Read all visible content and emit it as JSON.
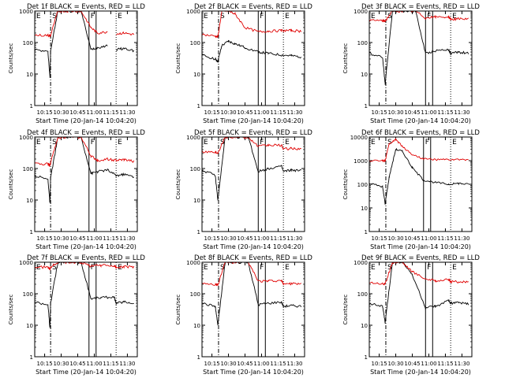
{
  "colors": {
    "events": "#000000",
    "lld": "#e00000",
    "axis": "#000000"
  },
  "panels": [
    {
      "title": "Det 1f BLACK = Events, RED = LLD",
      "ylabel": "Counts/sec",
      "xlabel": "Start Time (20-Jan-14 10:04:20)",
      "yscale": "log",
      "ylim": [
        1,
        1000
      ],
      "xlim": [
        10.1,
        11.65
      ],
      "yticks": [
        "1",
        "10",
        "100",
        "1000"
      ],
      "xticks": [
        "10:15",
        "10:30",
        "10:45",
        "11:00",
        "11:15",
        "11:30"
      ],
      "markers": [
        {
          "label": "E",
          "x": 10.1,
          "style": "dotted"
        },
        {
          "label": "S",
          "x": 10.34,
          "style": "dashdot"
        },
        {
          "label": "F",
          "x": 10.92,
          "style": "solid"
        },
        {
          "label": "E",
          "x": 11.33,
          "style": "dotted"
        }
      ],
      "chart_data": {
        "type": "line",
        "x": [
          10.1,
          10.3,
          10.33,
          10.34,
          10.45,
          10.6,
          10.8,
          10.95,
          11.05,
          11.2,
          11.3,
          11.33,
          11.45,
          11.6
        ],
        "series": [
          {
            "name": "Events",
            "values": [
              60,
              50,
              8,
              55,
              1000,
              1000,
              1000,
              60,
              70,
              80,
              null,
              60,
              65,
              55
            ]
          },
          {
            "name": "LLD",
            "values": [
              170,
              170,
              160,
              170,
              1000,
              1000,
              1000,
              300,
              200,
              220,
              null,
              190,
              200,
              180
            ]
          }
        ]
      }
    },
    {
      "title": "Det 2f BLACK = Events, RED = LLD",
      "ylabel": "Counts/sec",
      "xlabel": "Start Time (20-Jan-14 10:04:20)",
      "yscale": "log",
      "ylim": [
        1,
        1000
      ],
      "xlim": [
        10.1,
        11.65
      ],
      "yticks": [
        "1",
        "10",
        "100",
        "1000"
      ],
      "xticks": [
        "10:15",
        "10:30",
        "10:45",
        "11:00",
        "11:15",
        "11:30"
      ],
      "markers": [
        {
          "label": "E",
          "x": 10.1,
          "style": "dotted"
        },
        {
          "label": "S",
          "x": 10.35,
          "style": "dashdot"
        },
        {
          "label": "F",
          "x": 10.95,
          "style": "solid"
        },
        {
          "label": "E",
          "x": 11.33,
          "style": "dotted"
        }
      ],
      "chart_data": {
        "type": "line",
        "x": [
          10.1,
          10.3,
          10.34,
          10.4,
          10.5,
          10.6,
          10.75,
          10.95,
          11.1,
          11.3,
          11.45,
          11.6
        ],
        "series": [
          {
            "name": "Events",
            "values": [
              40,
              30,
              25,
              80,
              110,
              90,
              70,
              50,
              45,
              40,
              38,
              35
            ]
          },
          {
            "name": "LLD",
            "values": [
              180,
              160,
              150,
              1000,
              1000,
              800,
              300,
              220,
              230,
              240,
              240,
              230
            ]
          }
        ]
      }
    },
    {
      "title": "Det 3f BLACK = Events, RED = LLD",
      "ylabel": "Counts/sec",
      "xlabel": "Start Time (20-Jan-14 10:04:20)",
      "yscale": "log",
      "ylim": [
        1,
        1000
      ],
      "xlim": [
        10.1,
        11.65
      ],
      "yticks": [
        "1",
        "10",
        "100",
        "1000"
      ],
      "xticks": [
        "10:15",
        "10:30",
        "10:45",
        "11:00",
        "11:15",
        "11:30"
      ],
      "markers": [
        {
          "label": "E",
          "x": 10.1,
          "style": "dotted"
        },
        {
          "label": "S",
          "x": 10.35,
          "style": "dashdot"
        },
        {
          "label": "F",
          "x": 10.95,
          "style": "solid"
        },
        {
          "label": "E",
          "x": 11.33,
          "style": "dotted"
        }
      ],
      "chart_data": {
        "type": "line",
        "x": [
          10.1,
          10.3,
          10.34,
          10.45,
          10.6,
          10.8,
          10.95,
          11.1,
          11.3,
          11.33,
          11.45,
          11.6
        ],
        "series": [
          {
            "name": "Events",
            "values": [
              45,
              35,
              5,
              1000,
              1000,
              1000,
              45,
              55,
              60,
              45,
              50,
              45
            ]
          },
          {
            "name": "LLD",
            "values": [
              500,
              500,
              480,
              1000,
              1000,
              1000,
              600,
              650,
              650,
              550,
              560,
              550
            ]
          }
        ]
      }
    },
    {
      "title": "Det 4f BLACK = Events, RED = LLD",
      "ylabel": "Counts/sec",
      "xlabel": "Start Time (20-Jan-14 10:04:20)",
      "yscale": "log",
      "ylim": [
        1,
        1000
      ],
      "xlim": [
        10.1,
        11.65
      ],
      "yticks": [
        "1",
        "10",
        "100",
        "1000"
      ],
      "xticks": [
        "10:15",
        "10:30",
        "10:45",
        "11:00",
        "11:15",
        "11:30"
      ],
      "markers": [
        {
          "label": "E",
          "x": 10.1,
          "style": "dotted"
        },
        {
          "label": "S",
          "x": 10.34,
          "style": "dashdot"
        },
        {
          "label": "F",
          "x": 10.92,
          "style": "solid"
        },
        {
          "label": "E",
          "x": 11.33,
          "style": "dotted"
        }
      ],
      "chart_data": {
        "type": "line",
        "x": [
          10.1,
          10.3,
          10.33,
          10.34,
          10.45,
          10.6,
          10.8,
          10.95,
          11.05,
          11.2,
          11.33,
          11.45,
          11.6
        ],
        "series": [
          {
            "name": "Events",
            "values": [
              60,
              45,
              8,
              50,
              1000,
              1000,
              1000,
              70,
              80,
              90,
              60,
              65,
              55
            ]
          },
          {
            "name": "LLD",
            "values": [
              140,
              140,
              130,
              150,
              1000,
              1000,
              1000,
              250,
              180,
              200,
              180,
              190,
              170
            ]
          }
        ]
      }
    },
    {
      "title": "Det 5f BLACK = Events, RED = LLD",
      "ylabel": "Counts/sec",
      "xlabel": "Start Time (20-Jan-14 10:04:20)",
      "yscale": "log",
      "ylim": [
        1,
        1000
      ],
      "xlim": [
        10.1,
        11.65
      ],
      "yticks": [
        "1",
        "10",
        "100",
        "1000"
      ],
      "xticks": [
        "10:15",
        "10:30",
        "10:45",
        "11:00",
        "11:15",
        "11:30"
      ],
      "markers": [
        {
          "label": "E",
          "x": 10.1,
          "style": "dotted"
        },
        {
          "label": "S",
          "x": 10.35,
          "style": "dashdot"
        },
        {
          "label": "F",
          "x": 10.95,
          "style": "solid"
        },
        {
          "label": "E",
          "x": 11.33,
          "style": "dotted"
        }
      ],
      "chart_data": {
        "type": "line",
        "x": [
          10.1,
          10.3,
          10.34,
          10.45,
          10.6,
          10.8,
          10.95,
          11.1,
          11.3,
          11.33,
          11.45,
          11.6
        ],
        "series": [
          {
            "name": "Events",
            "values": [
              90,
              60,
              10,
              1000,
              1000,
              1000,
              80,
              100,
              120,
              80,
              90,
              85
            ]
          },
          {
            "name": "LLD",
            "values": [
              350,
              330,
              320,
              1000,
              1000,
              1000,
              500,
              550,
              550,
              420,
              430,
              420
            ]
          }
        ]
      }
    },
    {
      "title": "Det 6f BLACK = Events, RED = LLD",
      "ylabel": "Counts/sec",
      "xlabel": "Start Time (20-Jan-14 10:04:20)",
      "yscale": "log",
      "ylim": [
        1,
        10000
      ],
      "xlim": [
        10.1,
        11.65
      ],
      "yticks": [
        "1",
        "10",
        "100",
        "1000",
        "10000"
      ],
      "xticks": [
        "10:15",
        "10:30",
        "10:45",
        "11:00",
        "11:15",
        "11:30"
      ],
      "markers": [
        {
          "label": "E",
          "x": 10.1,
          "style": "dotted"
        },
        {
          "label": "S",
          "x": 10.35,
          "style": "dashdot"
        },
        {
          "label": "F",
          "x": 10.92,
          "style": "solid"
        },
        {
          "label": "E",
          "x": 11.33,
          "style": "dotted"
        }
      ],
      "chart_data": {
        "type": "line",
        "x": [
          10.1,
          10.3,
          10.34,
          10.4,
          10.5,
          10.6,
          10.75,
          10.92,
          11.1,
          11.3,
          11.45,
          11.6
        ],
        "series": [
          {
            "name": "Events",
            "values": [
              110,
              80,
              15,
              200,
              3000,
              2500,
              500,
              150,
              120,
              100,
              110,
              100
            ]
          },
          {
            "name": "LLD",
            "values": [
              1000,
              1000,
              1000,
              5000,
              8000,
              4000,
              1800,
              1200,
              1100,
              1100,
              1100,
              1100
            ]
          }
        ]
      }
    },
    {
      "title": "Det 7f BLACK = Events, RED = LLD",
      "ylabel": "Counts/sec",
      "xlabel": "Start Time (20-Jan-14 10:04:20)",
      "yscale": "log",
      "ylim": [
        1,
        1000
      ],
      "xlim": [
        10.1,
        11.65
      ],
      "yticks": [
        "1",
        "10",
        "100",
        "1000"
      ],
      "xticks": [
        "10:15",
        "10:30",
        "10:45",
        "11:00",
        "11:15",
        "11:30"
      ],
      "markers": [
        {
          "label": "E",
          "x": 10.1,
          "style": "dotted"
        },
        {
          "label": "S",
          "x": 10.34,
          "style": "dashdot"
        },
        {
          "label": "F",
          "x": 10.92,
          "style": "solid"
        },
        {
          "label": "E",
          "x": 11.33,
          "style": "dotted"
        }
      ],
      "chart_data": {
        "type": "line",
        "x": [
          10.1,
          10.3,
          10.33,
          10.34,
          10.45,
          10.6,
          10.8,
          10.95,
          11.1,
          11.3,
          11.33,
          11.45,
          11.6
        ],
        "series": [
          {
            "name": "Events",
            "values": [
              55,
              45,
              8,
              50,
              1000,
              1000,
              1000,
              70,
              75,
              80,
              50,
              55,
              50
            ]
          },
          {
            "name": "LLD",
            "values": [
              700,
              700,
              600,
              700,
              1000,
              1000,
              1000,
              750,
              800,
              750,
              700,
              720,
              700
            ]
          }
        ]
      }
    },
    {
      "title": "Det 8f BLACK = Events, RED = LLD",
      "ylabel": "Counts/sec",
      "xlabel": "Start Time (20-Jan-14 10:04:20)",
      "yscale": "log",
      "ylim": [
        1,
        1000
      ],
      "xlim": [
        10.1,
        11.65
      ],
      "yticks": [
        "1",
        "10",
        "100",
        "1000"
      ],
      "xticks": [
        "10:15",
        "10:30",
        "10:45",
        "11:00",
        "11:15",
        "11:30"
      ],
      "markers": [
        {
          "label": "E",
          "x": 10.1,
          "style": "dotted"
        },
        {
          "label": "S",
          "x": 10.35,
          "style": "dashdot"
        },
        {
          "label": "F",
          "x": 10.95,
          "style": "solid"
        },
        {
          "label": "E",
          "x": 11.33,
          "style": "dotted"
        }
      ],
      "chart_data": {
        "type": "line",
        "x": [
          10.1,
          10.3,
          10.34,
          10.45,
          10.6,
          10.8,
          10.95,
          11.1,
          11.3,
          11.33,
          11.45,
          11.6
        ],
        "series": [
          {
            "name": "Events",
            "values": [
              50,
              40,
              10,
              1000,
              1000,
              1000,
              45,
              50,
              55,
              40,
              42,
              40
            ]
          },
          {
            "name": "LLD",
            "values": [
              220,
              200,
              190,
              1000,
              1000,
              1000,
              250,
              250,
              260,
              210,
              210,
              200
            ]
          }
        ]
      }
    },
    {
      "title": "Det 9f BLACK = Events, RED = LLD",
      "ylabel": "Counts/sec",
      "xlabel": "Start Time (20-Jan-14 10:04:20)",
      "yscale": "log",
      "ylim": [
        1,
        1000
      ],
      "xlim": [
        10.1,
        11.65
      ],
      "yticks": [
        "1",
        "10",
        "100",
        "1000"
      ],
      "xticks": [
        "10:15",
        "10:30",
        "10:45",
        "11:00",
        "11:15",
        "11:30"
      ],
      "markers": [
        {
          "label": "E",
          "x": 10.1,
          "style": "dotted"
        },
        {
          "label": "S",
          "x": 10.35,
          "style": "dashdot"
        },
        {
          "label": "F",
          "x": 10.95,
          "style": "solid"
        },
        {
          "label": "E",
          "x": 11.33,
          "style": "dotted"
        }
      ],
      "chart_data": {
        "type": "line",
        "x": [
          10.1,
          10.3,
          10.34,
          10.45,
          10.6,
          10.75,
          10.95,
          11.1,
          11.3,
          11.33,
          11.45,
          11.6
        ],
        "series": [
          {
            "name": "Events",
            "values": [
              50,
              40,
              12,
              1000,
              1000,
              400,
              35,
              40,
              60,
              50,
              52,
              48
            ]
          },
          {
            "name": "LLD",
            "values": [
              230,
              210,
              200,
              1000,
              1000,
              500,
              300,
              260,
              280,
              240,
              240,
              230
            ]
          }
        ]
      }
    }
  ]
}
